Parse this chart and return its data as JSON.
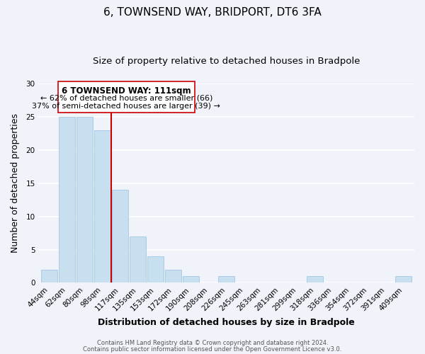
{
  "title": "6, TOWNSEND WAY, BRIDPORT, DT6 3FA",
  "subtitle": "Size of property relative to detached houses in Bradpole",
  "xlabel": "Distribution of detached houses by size in Bradpole",
  "ylabel": "Number of detached properties",
  "bin_labels": [
    "44sqm",
    "62sqm",
    "80sqm",
    "98sqm",
    "117sqm",
    "135sqm",
    "153sqm",
    "172sqm",
    "190sqm",
    "208sqm",
    "226sqm",
    "245sqm",
    "263sqm",
    "281sqm",
    "299sqm",
    "318sqm",
    "336sqm",
    "354sqm",
    "372sqm",
    "391sqm",
    "409sqm"
  ],
  "bar_values": [
    2,
    25,
    25,
    23,
    14,
    7,
    4,
    2,
    1,
    0,
    1,
    0,
    0,
    0,
    0,
    1,
    0,
    0,
    0,
    0,
    1
  ],
  "bar_color": "#c8dff0",
  "bar_edge_color": "#aacce8",
  "property_line_label": "6 TOWNSEND WAY: 111sqm",
  "annotation_line1": "← 62% of detached houses are smaller (66)",
  "annotation_line2": "37% of semi-detached houses are larger (39) →",
  "vline_color": "#cc0000",
  "ylim": [
    0,
    30
  ],
  "yticks": [
    0,
    5,
    10,
    15,
    20,
    25,
    30
  ],
  "footnote1": "Contains HM Land Registry data © Crown copyright and database right 2024.",
  "footnote2": "Contains public sector information licensed under the Open Government Licence v3.0.",
  "background_color": "#f0f4fa",
  "grid_color": "#ffffff",
  "title_fontsize": 11,
  "subtitle_fontsize": 9.5,
  "axis_label_fontsize": 9,
  "tick_fontsize": 7.5,
  "annotation_box_color": "#ffffff",
  "annotation_box_edge": "#cc0000"
}
